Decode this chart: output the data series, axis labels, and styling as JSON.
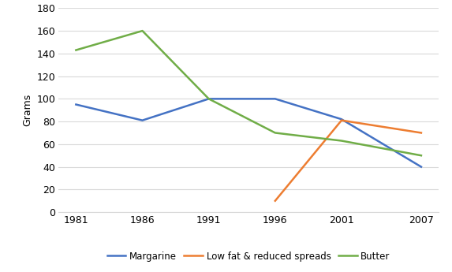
{
  "years": [
    1981,
    1986,
    1991,
    1996,
    2001,
    2007
  ],
  "margarine": [
    95,
    81,
    100,
    100,
    82,
    40
  ],
  "low_fat": [
    null,
    null,
    null,
    10,
    81,
    70
  ],
  "butter": [
    143,
    160,
    100,
    70,
    63,
    50
  ],
  "margarine_color": "#4472C4",
  "low_fat_color": "#ED7D31",
  "butter_color": "#70AD47",
  "ylabel": "Grams",
  "ylim": [
    0,
    180
  ],
  "yticks": [
    0,
    20,
    40,
    60,
    80,
    100,
    120,
    140,
    160,
    180
  ],
  "xtick_labels": [
    "1981",
    "1986",
    "1991",
    "1996",
    "2001",
    "2007"
  ],
  "legend_labels": [
    "Margarine",
    "Low fat & reduced spreads",
    "Butter"
  ],
  "background_color": "#ffffff",
  "grid_color": "#d9d9d9",
  "line_width": 1.8
}
